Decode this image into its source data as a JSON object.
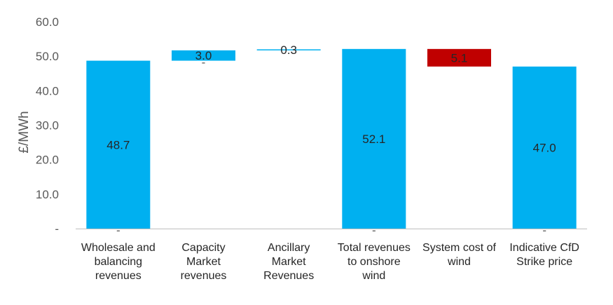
{
  "chart_data": {
    "type": "bar",
    "subtype": "waterfall",
    "ylabel": "£/MWh",
    "ylim": [
      0,
      60
    ],
    "yticks": [
      "-",
      "10.0",
      "20.0",
      "30.0",
      "40.0",
      "50.0",
      "60.0"
    ],
    "grid": false,
    "legend": "none",
    "categories": [
      [
        "Wholesale and",
        "balancing",
        "revenues"
      ],
      [
        "Capacity",
        "Market",
        "revenues"
      ],
      [
        "Ancillary",
        "Market",
        "Revenues"
      ],
      [
        "Total revenues",
        "to onshore",
        "wind"
      ],
      [
        "System cost of",
        "wind"
      ],
      [
        "Indicative CfD",
        "Strike price"
      ]
    ],
    "bars": [
      {
        "label": "48.7",
        "base": 0,
        "top": 48.7,
        "color": "#00B0F0",
        "kind": "total"
      },
      {
        "label": "3.0",
        "base": 48.7,
        "top": 51.7,
        "color": "#00B0F0",
        "kind": "increase"
      },
      {
        "label": "0.3",
        "base": 51.7,
        "top": 52.0,
        "color": "#00B0F0",
        "kind": "increase"
      },
      {
        "label": "52.1",
        "base": 0,
        "top": 52.1,
        "color": "#00B0F0",
        "kind": "total"
      },
      {
        "label": "5.1",
        "base": 47.0,
        "top": 52.1,
        "color": "#C00000",
        "kind": "decrease"
      },
      {
        "label": "47.0",
        "base": 0,
        "top": 47.0,
        "color": "#00B0F0",
        "kind": "total"
      }
    ],
    "baseline_markers": [
      "-",
      "-",
      "",
      "-",
      "",
      "-"
    ]
  }
}
